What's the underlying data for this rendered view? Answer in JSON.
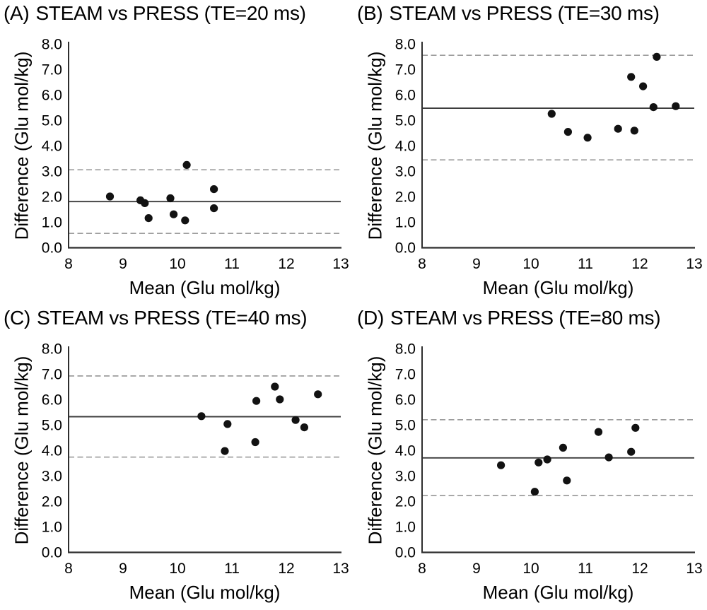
{
  "figure": {
    "xlabel": "Mean (Glu mol/kg)",
    "ylabel": "Difference (Glu mol/kg)"
  },
  "style": {
    "point_color": "#121212",
    "mean_line_color": "#3d3d3d",
    "loa_line_color": "#9c9c9c",
    "axis_color": "#2e2e2e",
    "text_color": "#000000"
  },
  "chart_data": [
    {
      "type": "scatter",
      "panel_label": "(A)",
      "title": "STEAM vs PRESS (TE=20 ms)",
      "xlabel": "Mean (Glu mol/kg)",
      "ylabel": "Difference (Glu mol/kg)",
      "xlim": [
        8,
        13
      ],
      "ylim": [
        0,
        8
      ],
      "xticks": [
        8,
        9,
        10,
        11,
        12,
        13
      ],
      "yticks": [
        0,
        1,
        2,
        3,
        4,
        5,
        6,
        7,
        8
      ],
      "grid": false,
      "legend": "none",
      "mean_line": 1.8,
      "upper_loa": 3.05,
      "lower_loa": 0.55,
      "points": [
        [
          8.76,
          2.0
        ],
        [
          9.32,
          1.85
        ],
        [
          9.4,
          1.74
        ],
        [
          9.47,
          1.15
        ],
        [
          9.87,
          1.93
        ],
        [
          9.93,
          1.3
        ],
        [
          10.14,
          1.06
        ],
        [
          10.17,
          3.24
        ],
        [
          10.67,
          2.29
        ],
        [
          10.67,
          1.54
        ]
      ]
    },
    {
      "type": "scatter",
      "panel_label": "(B)",
      "title": "STEAM vs PRESS (TE=30 ms)",
      "xlabel": "Mean (Glu mol/kg)",
      "ylabel": "Difference (Glu mol/kg)",
      "xlim": [
        8,
        13
      ],
      "ylim": [
        0,
        8
      ],
      "xticks": [
        8,
        9,
        10,
        11,
        12,
        13
      ],
      "yticks": [
        0,
        1,
        2,
        3,
        4,
        5,
        6,
        7,
        8
      ],
      "grid": false,
      "legend": "none",
      "mean_line": 5.47,
      "upper_loa": 7.55,
      "lower_loa": 3.44,
      "points": [
        [
          10.38,
          5.25
        ],
        [
          10.68,
          4.54
        ],
        [
          11.04,
          4.31
        ],
        [
          11.6,
          4.66
        ],
        [
          11.84,
          6.7
        ],
        [
          11.9,
          4.59
        ],
        [
          12.06,
          6.33
        ],
        [
          12.25,
          5.51
        ],
        [
          12.31,
          7.49
        ],
        [
          12.66,
          5.55
        ]
      ]
    },
    {
      "type": "scatter",
      "panel_label": "(C)",
      "title": "STEAM vs PRESS (TE=40 ms)",
      "xlabel": "Mean (Glu mol/kg)",
      "ylabel": "Difference (Glu mol/kg)",
      "xlim": [
        8,
        13
      ],
      "ylim": [
        0,
        8
      ],
      "xticks": [
        8,
        9,
        10,
        11,
        12,
        13
      ],
      "yticks": [
        0,
        1,
        2,
        3,
        4,
        5,
        6,
        7,
        8
      ],
      "grid": false,
      "legend": "none",
      "mean_line": 5.32,
      "upper_loa": 6.92,
      "lower_loa": 3.73,
      "points": [
        [
          10.44,
          5.34
        ],
        [
          10.87,
          3.97
        ],
        [
          10.92,
          5.03
        ],
        [
          11.43,
          4.32
        ],
        [
          11.45,
          5.94
        ],
        [
          11.79,
          6.5
        ],
        [
          11.88,
          6.0
        ],
        [
          12.17,
          5.19
        ],
        [
          12.33,
          4.9
        ],
        [
          12.58,
          6.2
        ]
      ]
    },
    {
      "type": "scatter",
      "panel_label": "(D)",
      "title": "STEAM vs PRESS (TE=80 ms)",
      "xlabel": "Mean (Glu mol/kg)",
      "ylabel": "Difference (Glu mol/kg)",
      "xlim": [
        8,
        13
      ],
      "ylim": [
        0,
        8
      ],
      "xticks": [
        8,
        9,
        10,
        11,
        12,
        13
      ],
      "yticks": [
        0,
        1,
        2,
        3,
        4,
        5,
        6,
        7,
        8
      ],
      "grid": false,
      "legend": "none",
      "mean_line": 3.7,
      "upper_loa": 5.2,
      "lower_loa": 2.22,
      "points": [
        [
          9.45,
          3.41
        ],
        [
          10.07,
          2.37
        ],
        [
          10.14,
          3.52
        ],
        [
          10.3,
          3.64
        ],
        [
          10.59,
          4.1
        ],
        [
          10.66,
          2.81
        ],
        [
          11.24,
          4.72
        ],
        [
          11.43,
          3.72
        ],
        [
          11.84,
          3.94
        ],
        [
          11.92,
          4.88
        ]
      ]
    }
  ]
}
